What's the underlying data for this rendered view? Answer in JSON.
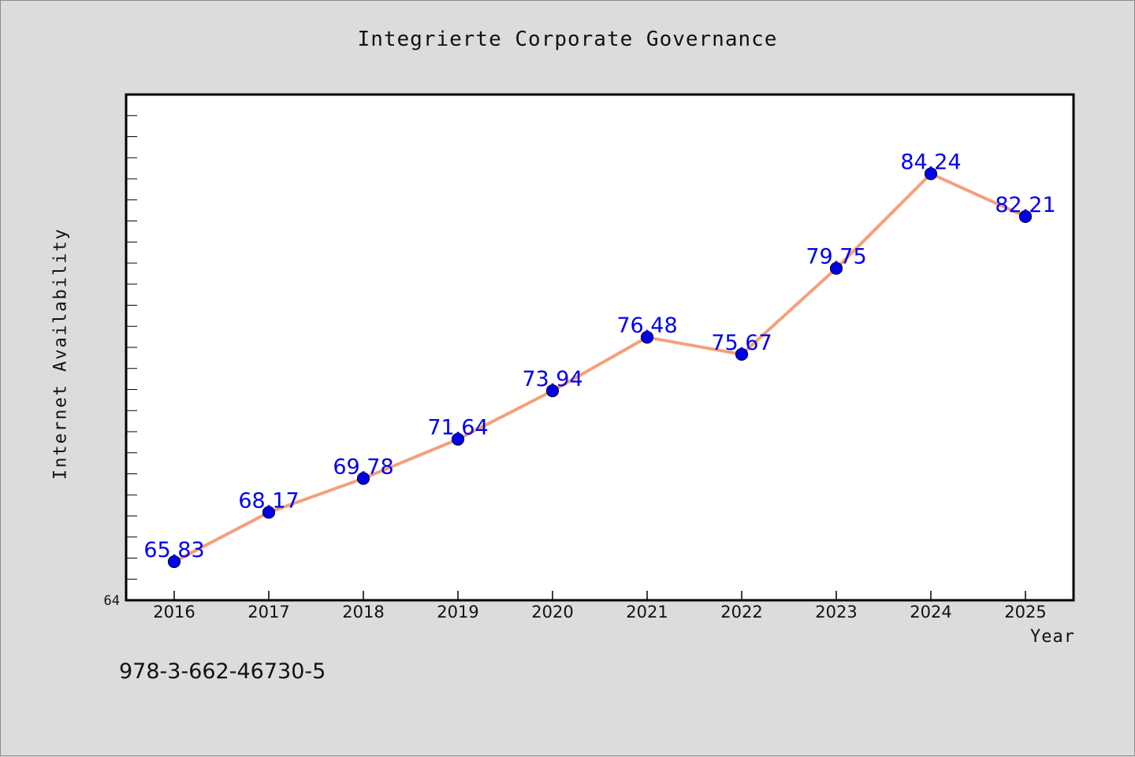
{
  "chart_data": {
    "type": "line",
    "title": "Integrierte Corporate Governance",
    "xlabel": "Year",
    "ylabel": "Internet Availability",
    "categories": [
      "2016",
      "2017",
      "2018",
      "2019",
      "2020",
      "2021",
      "2022",
      "2023",
      "2024",
      "2025"
    ],
    "series": [
      {
        "values": [
          65.83,
          68.17,
          69.78,
          71.64,
          73.94,
          76.48,
          75.67,
          79.75,
          84.24,
          82.21
        ],
        "line_color": "#f4a07a",
        "marker_color": "#0000ee"
      }
    ],
    "value_labels": [
      "65.83",
      "68.17",
      "69.78",
      "71.64",
      "73.94",
      "76.48",
      "75.67",
      "79.75",
      "84.24",
      "82.21"
    ],
    "label_color": "#0000ee",
    "ylim": [
      64,
      88
    ],
    "y_tick_labels": [
      "64"
    ],
    "grid": false,
    "legend": "none"
  },
  "footer": {
    "isbn": "978-3-662-46730-5"
  }
}
